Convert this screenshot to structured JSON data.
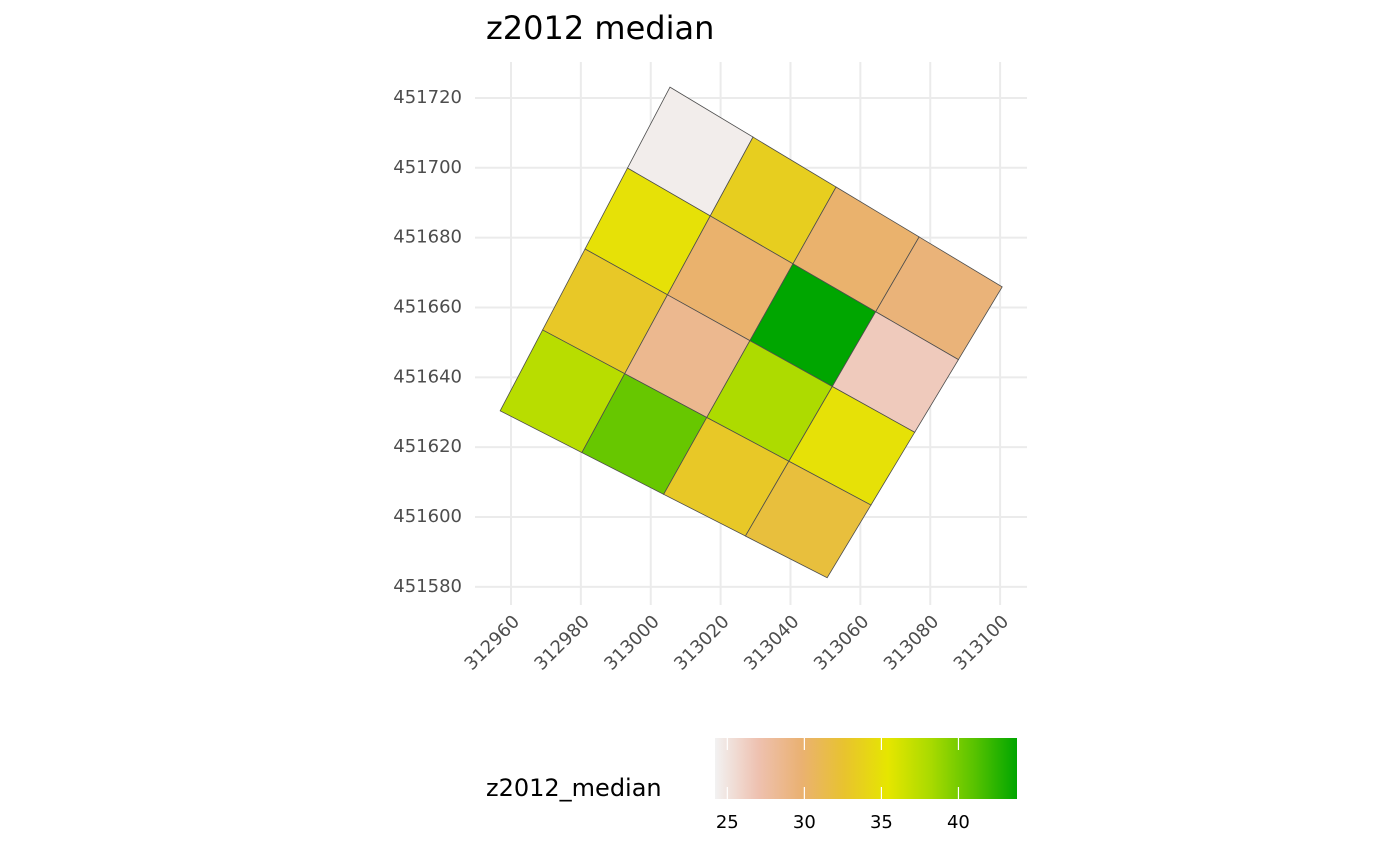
{
  "chart_data": {
    "type": "map",
    "title": "z2012 median",
    "grid_corners": {
      "top": [
        313005.5,
        451723.1
      ],
      "right": [
        313100.6,
        451665.9
      ],
      "left": [
        312956.9,
        451630.4
      ],
      "bottom": [
        313050.5,
        451582.6
      ]
    },
    "values": [
      [
        24.5,
        33.5,
        30,
        29.5
      ],
      [
        35,
        30,
        43.8,
        26.5
      ],
      [
        33,
        28.5,
        38,
        35
      ],
      [
        37.5,
        40.5,
        33,
        32
      ]
    ],
    "xlim": [
      312949.7,
      313107.7
    ],
    "xticks": [
      312960,
      312980,
      313000,
      313020,
      313040,
      313060,
      313080,
      313100
    ],
    "ylim": [
      451574.8,
      451730.3
    ],
    "yticks": [
      451580,
      451600,
      451620,
      451640,
      451660,
      451680,
      451700,
      451720
    ],
    "grid": true,
    "edge_color": "#4d4d4d",
    "legend": {
      "title": "z2012_median",
      "limits": [
        24.2,
        43.8
      ],
      "ticks": [
        25,
        30,
        35,
        40
      ],
      "colors": [
        "#f2f2f2",
        "#eec1b0",
        "#eab172",
        "#e8c32e",
        "#e6e600",
        "#a9da00",
        "#59c300",
        "#00a600"
      ]
    }
  }
}
